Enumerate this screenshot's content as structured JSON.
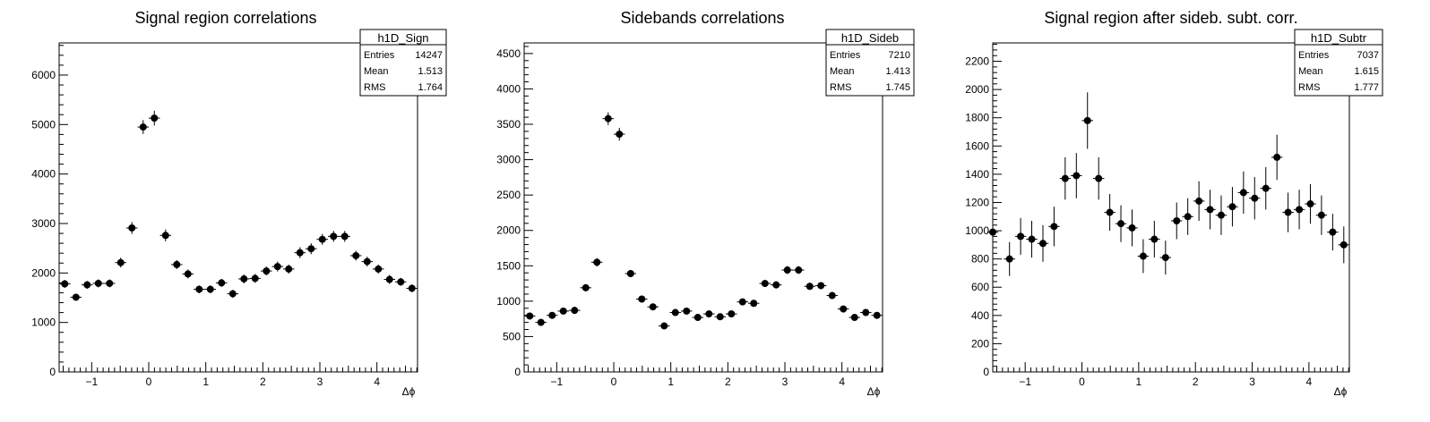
{
  "chart_data": [
    {
      "type": "scatter",
      "title": "Signal region correlations",
      "xlabel": "Δϕ",
      "ylabel": "",
      "xlim": [
        -1.571,
        4.712
      ],
      "ylim": [
        0,
        6650
      ],
      "yticks": [
        0,
        1000,
        2000,
        3000,
        4000,
        5000,
        6000
      ],
      "xticks": [
        -1,
        0,
        1,
        2,
        3,
        4
      ],
      "stats": {
        "name": "h1D_Sign",
        "rows": [
          [
            "Entries",
            "14247"
          ],
          [
            "Mean",
            "1.513"
          ],
          [
            "RMS",
            "1.764"
          ]
        ]
      },
      "series": [
        {
          "x": [
            -1.473,
            -1.276,
            -1.08,
            -0.884,
            -0.687,
            -0.491,
            -0.295,
            -0.098,
            0.098,
            0.295,
            0.491,
            0.687,
            0.884,
            1.08,
            1.276,
            1.473,
            1.669,
            1.865,
            2.062,
            2.258,
            2.454,
            2.651,
            2.847,
            3.043,
            3.24,
            3.436,
            3.632,
            3.829,
            4.025,
            4.221,
            4.418,
            4.614
          ],
          "y": [
            1780,
            1510,
            1760,
            1790,
            1790,
            2210,
            2910,
            4950,
            5130,
            2760,
            2170,
            1980,
            1670,
            1670,
            1800,
            1580,
            1880,
            1890,
            2040,
            2130,
            2080,
            2410,
            2490,
            2680,
            2740,
            2740,
            2350,
            2230,
            2080,
            1870,
            1820,
            1690
          ],
          "err": [
            80,
            70,
            80,
            80,
            80,
            100,
            120,
            140,
            150,
            120,
            90,
            90,
            80,
            80,
            80,
            80,
            90,
            90,
            90,
            100,
            90,
            110,
            110,
            110,
            110,
            110,
            100,
            100,
            90,
            90,
            80,
            80
          ]
        }
      ]
    },
    {
      "type": "scatter",
      "title": "Sidebands correlations",
      "xlabel": "Δϕ",
      "ylabel": "",
      "xlim": [
        -1.571,
        4.712
      ],
      "ylim": [
        0,
        4650
      ],
      "yticks": [
        0,
        500,
        1000,
        1500,
        2000,
        2500,
        3000,
        3500,
        4000,
        4500
      ],
      "xticks": [
        -1,
        0,
        1,
        2,
        3,
        4
      ],
      "stats": {
        "name": "h1D_Sideb",
        "rows": [
          [
            "Entries",
            "7210"
          ],
          [
            "Mean",
            "1.413"
          ],
          [
            "RMS",
            "1.745"
          ]
        ]
      },
      "series": [
        {
          "x": [
            -1.473,
            -1.276,
            -1.08,
            -0.884,
            -0.687,
            -0.491,
            -0.295,
            -0.098,
            0.098,
            0.295,
            0.491,
            0.687,
            0.884,
            1.08,
            1.276,
            1.473,
            1.669,
            1.865,
            2.062,
            2.258,
            2.454,
            2.651,
            2.847,
            3.043,
            3.24,
            3.436,
            3.632,
            3.829,
            4.025,
            4.221,
            4.418,
            4.614
          ],
          "y": [
            790,
            700,
            800,
            860,
            870,
            1190,
            1550,
            3580,
            3360,
            1390,
            1030,
            920,
            650,
            840,
            860,
            770,
            820,
            780,
            820,
            990,
            970,
            1250,
            1230,
            1440,
            1440,
            1210,
            1220,
            1080,
            890,
            770,
            840,
            800
          ],
          "err": [
            40,
            35,
            40,
            40,
            40,
            50,
            60,
            90,
            90,
            50,
            45,
            40,
            35,
            40,
            40,
            40,
            40,
            40,
            40,
            45,
            45,
            50,
            50,
            55,
            55,
            50,
            50,
            45,
            40,
            40,
            40,
            40
          ]
        }
      ]
    },
    {
      "type": "scatter",
      "title": "Signal region after sideb. subt. corr.",
      "xlabel": "Δϕ",
      "ylabel": "",
      "xlim": [
        -1.571,
        4.712
      ],
      "ylim": [
        0,
        2330
      ],
      "yticks": [
        0,
        200,
        400,
        600,
        800,
        1000,
        1200,
        1400,
        1600,
        1800,
        2000,
        2200
      ],
      "xticks": [
        -1,
        0,
        1,
        2,
        3,
        4
      ],
      "stats": {
        "name": "h1D_Subtr",
        "rows": [
          [
            "Entries",
            "7037"
          ],
          [
            "Mean",
            "1.615"
          ],
          [
            "RMS",
            "1.777"
          ]
        ]
      },
      "series": [
        {
          "x": [
            -1.571,
            -1.276,
            -1.08,
            -0.884,
            -0.687,
            -0.491,
            -0.295,
            -0.098,
            0.098,
            0.295,
            0.491,
            0.687,
            0.884,
            1.08,
            1.276,
            1.473,
            1.669,
            1.865,
            2.062,
            2.258,
            2.454,
            2.651,
            2.847,
            3.043,
            3.24,
            3.436,
            3.632,
            3.829,
            4.025,
            4.221,
            4.418,
            4.614
          ],
          "y": [
            990,
            800,
            960,
            940,
            910,
            1030,
            1370,
            1390,
            1780,
            1370,
            1130,
            1050,
            1020,
            820,
            940,
            810,
            1070,
            1100,
            1210,
            1150,
            1110,
            1170,
            1270,
            1230,
            1300,
            1520,
            1130,
            1150,
            1190,
            1110,
            990,
            900
          ],
          "err": [
            120,
            120,
            130,
            130,
            130,
            140,
            150,
            160,
            200,
            150,
            130,
            130,
            130,
            120,
            130,
            120,
            130,
            130,
            140,
            140,
            140,
            140,
            150,
            150,
            150,
            160,
            140,
            140,
            140,
            140,
            130,
            130
          ]
        }
      ]
    }
  ]
}
